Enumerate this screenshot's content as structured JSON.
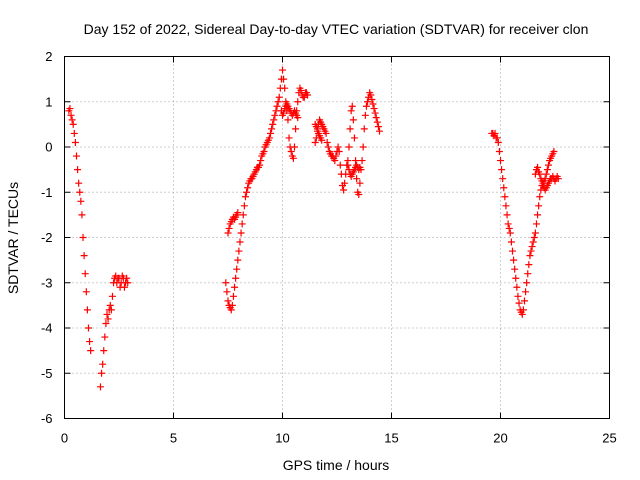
{
  "chart_data": {
    "type": "scatter",
    "title": "Day 152 of 2022, Sidereal Day-to-day VTEC variation (SDTVAR) for receiver clon",
    "xlabel": "GPS time / hours",
    "ylabel": "SDTVAR / TECUs",
    "xlim": [
      0,
      25
    ],
    "ylim": [
      -6,
      2
    ],
    "xticks": [
      0,
      5,
      10,
      15,
      20,
      25
    ],
    "yticks": [
      -6,
      -5,
      -4,
      -3,
      -2,
      -1,
      0,
      1,
      2
    ],
    "grid": true,
    "legend": "none",
    "marker": "+",
    "series_color": "#ff0000",
    "series": [
      {
        "name": "SDTVAR",
        "points": [
          [
            0.2,
            0.8
          ],
          [
            0.25,
            0.85
          ],
          [
            0.3,
            0.7
          ],
          [
            0.35,
            0.6
          ],
          [
            0.4,
            0.5
          ],
          [
            0.45,
            0.3
          ],
          [
            0.5,
            0.1
          ],
          [
            0.55,
            -0.2
          ],
          [
            0.6,
            -0.5
          ],
          [
            0.65,
            -0.8
          ],
          [
            0.7,
            -1.0
          ],
          [
            0.75,
            -1.2
          ],
          [
            0.8,
            -1.5
          ],
          [
            0.85,
            -2.0
          ],
          [
            0.9,
            -2.4
          ],
          [
            0.95,
            -2.8
          ],
          [
            1.0,
            -3.2
          ],
          [
            1.05,
            -3.6
          ],
          [
            1.1,
            -4.0
          ],
          [
            1.15,
            -4.3
          ],
          [
            1.2,
            -4.5
          ],
          [
            1.65,
            -5.3
          ],
          [
            1.7,
            -5.0
          ],
          [
            1.75,
            -4.8
          ],
          [
            1.8,
            -4.5
          ],
          [
            1.85,
            -4.2
          ],
          [
            1.9,
            -3.9
          ],
          [
            1.95,
            -3.7
          ],
          [
            2.0,
            -3.8
          ],
          [
            2.05,
            -3.6
          ],
          [
            2.1,
            -3.5
          ],
          [
            2.15,
            -3.6
          ],
          [
            2.2,
            -3.3
          ],
          [
            2.25,
            -3.0
          ],
          [
            2.3,
            -2.9
          ],
          [
            2.35,
            -2.85
          ],
          [
            2.4,
            -3.0
          ],
          [
            2.45,
            -2.9
          ],
          [
            2.5,
            -2.9
          ],
          [
            2.55,
            -3.1
          ],
          [
            2.6,
            -3.0
          ],
          [
            2.65,
            -2.85
          ],
          [
            2.7,
            -2.9
          ],
          [
            2.75,
            -3.1
          ],
          [
            2.8,
            -3.0
          ],
          [
            2.85,
            -2.9
          ],
          [
            2.9,
            -3.0
          ],
          [
            7.4,
            -3.0
          ],
          [
            7.45,
            -3.2
          ],
          [
            7.5,
            -3.4
          ],
          [
            7.55,
            -3.5
          ],
          [
            7.6,
            -3.55
          ],
          [
            7.65,
            -3.6
          ],
          [
            7.7,
            -3.5
          ],
          [
            7.75,
            -3.3
          ],
          [
            7.8,
            -3.1
          ],
          [
            7.85,
            -2.9
          ],
          [
            7.9,
            -2.7
          ],
          [
            7.95,
            -2.5
          ],
          [
            8.0,
            -2.3
          ],
          [
            8.05,
            -2.1
          ],
          [
            8.1,
            -1.9
          ],
          [
            8.15,
            -1.7
          ],
          [
            8.2,
            -1.5
          ],
          [
            8.25,
            -1.3
          ],
          [
            8.3,
            -1.1
          ],
          [
            8.35,
            -1.0
          ],
          [
            8.4,
            -0.9
          ],
          [
            8.45,
            -0.8
          ],
          [
            8.5,
            -0.75
          ],
          [
            8.55,
            -0.7
          ],
          [
            8.6,
            -0.7
          ],
          [
            8.65,
            -0.65
          ],
          [
            8.7,
            -0.6
          ],
          [
            8.75,
            -0.55
          ],
          [
            8.8,
            -0.5
          ],
          [
            8.85,
            -0.45
          ],
          [
            8.9,
            -0.45
          ],
          [
            8.95,
            -0.4
          ],
          [
            9.0,
            -0.3
          ],
          [
            9.05,
            -0.2
          ],
          [
            9.1,
            -0.15
          ],
          [
            9.15,
            -0.1
          ],
          [
            9.2,
            0.0
          ],
          [
            9.25,
            0.05
          ],
          [
            9.3,
            0.1
          ],
          [
            9.35,
            0.15
          ],
          [
            9.4,
            0.2
          ],
          [
            9.45,
            0.3
          ],
          [
            9.5,
            0.4
          ],
          [
            9.55,
            0.5
          ],
          [
            9.6,
            0.6
          ],
          [
            9.65,
            0.7
          ],
          [
            9.7,
            0.8
          ],
          [
            9.75,
            0.9
          ],
          [
            9.8,
            1.0
          ],
          [
            9.85,
            1.1
          ],
          [
            9.9,
            1.3
          ],
          [
            9.95,
            1.5
          ],
          [
            10.0,
            1.7
          ],
          [
            10.05,
            1.5
          ],
          [
            10.1,
            1.3
          ],
          [
            10.15,
            1.0
          ],
          [
            10.2,
            0.8
          ],
          [
            10.25,
            0.6
          ],
          [
            10.3,
            0.2
          ],
          [
            10.35,
            0.0
          ],
          [
            10.4,
            -0.1
          ],
          [
            10.45,
            -0.2
          ],
          [
            10.5,
            -0.25
          ],
          [
            10.55,
            0.0
          ],
          [
            10.6,
            0.4
          ],
          [
            10.65,
            0.8
          ],
          [
            10.7,
            1.0
          ],
          [
            10.75,
            1.2
          ],
          [
            10.8,
            1.3
          ],
          [
            10.85,
            1.25
          ],
          [
            10.9,
            1.15
          ],
          [
            10.95,
            1.1
          ],
          [
            11.0,
            1.1
          ],
          [
            11.05,
            1.2
          ],
          [
            11.1,
            1.2
          ],
          [
            11.15,
            1.15
          ],
          [
            7.5,
            -1.9
          ],
          [
            7.55,
            -1.8
          ],
          [
            7.6,
            -1.7
          ],
          [
            7.65,
            -1.65
          ],
          [
            7.7,
            -1.6
          ],
          [
            7.75,
            -1.55
          ],
          [
            7.8,
            -1.6
          ],
          [
            7.85,
            -1.55
          ],
          [
            7.9,
            -1.5
          ],
          [
            7.95,
            -1.45
          ],
          [
            9.95,
            0.8
          ],
          [
            10.0,
            0.7
          ],
          [
            10.05,
            0.75
          ],
          [
            10.1,
            0.85
          ],
          [
            10.15,
            0.9
          ],
          [
            10.2,
            0.95
          ],
          [
            10.25,
            0.9
          ],
          [
            10.3,
            0.85
          ],
          [
            10.35,
            0.8
          ],
          [
            10.4,
            0.75
          ],
          [
            10.45,
            0.7
          ],
          [
            10.5,
            0.75
          ],
          [
            10.55,
            0.8
          ],
          [
            10.6,
            0.75
          ],
          [
            10.65,
            0.7
          ],
          [
            10.7,
            0.65
          ],
          [
            11.5,
            0.1
          ],
          [
            11.55,
            0.2
          ],
          [
            11.6,
            0.35
          ],
          [
            11.65,
            0.5
          ],
          [
            11.7,
            0.6
          ],
          [
            11.75,
            0.55
          ],
          [
            11.8,
            0.5
          ],
          [
            11.85,
            0.45
          ],
          [
            11.9,
            0.4
          ],
          [
            11.95,
            0.35
          ],
          [
            12.0,
            0.3
          ],
          [
            12.05,
            0.1
          ],
          [
            12.1,
            0.0
          ],
          [
            12.15,
            -0.1
          ],
          [
            12.2,
            -0.15
          ],
          [
            12.25,
            -0.2
          ],
          [
            12.3,
            -0.2
          ],
          [
            12.35,
            -0.25
          ],
          [
            12.4,
            -0.3
          ],
          [
            12.45,
            -0.2
          ],
          [
            12.5,
            -0.1
          ],
          [
            12.55,
            0.0
          ],
          [
            12.6,
            -0.1
          ],
          [
            12.65,
            -0.4
          ],
          [
            12.7,
            -0.6
          ],
          [
            12.75,
            -0.85
          ],
          [
            12.8,
            -0.95
          ],
          [
            12.85,
            -0.8
          ],
          [
            12.9,
            -0.6
          ],
          [
            12.95,
            -0.4
          ],
          [
            13.0,
            -0.3
          ],
          [
            13.05,
            0.0
          ],
          [
            13.1,
            0.4
          ],
          [
            13.15,
            0.8
          ],
          [
            13.2,
            0.9
          ],
          [
            13.25,
            0.6
          ],
          [
            13.3,
            0.2
          ],
          [
            13.35,
            -0.3
          ],
          [
            13.4,
            -0.7
          ],
          [
            13.45,
            -1.0
          ],
          [
            13.5,
            -1.05
          ],
          [
            13.55,
            -0.8
          ],
          [
            13.6,
            -0.5
          ],
          [
            13.65,
            -0.3
          ],
          [
            13.7,
            0.0
          ],
          [
            13.75,
            0.4
          ],
          [
            13.8,
            0.7
          ],
          [
            13.85,
            0.9
          ],
          [
            13.9,
            1.0
          ],
          [
            13.95,
            1.1
          ],
          [
            14.0,
            1.2
          ],
          [
            14.05,
            1.15
          ],
          [
            14.1,
            1.05
          ],
          [
            14.15,
            0.95
          ],
          [
            14.2,
            0.85
          ],
          [
            14.25,
            0.75
          ],
          [
            14.3,
            0.65
          ],
          [
            14.35,
            0.55
          ],
          [
            14.4,
            0.45
          ],
          [
            14.45,
            0.35
          ],
          [
            11.5,
            0.5
          ],
          [
            11.55,
            0.45
          ],
          [
            11.6,
            0.4
          ],
          [
            11.65,
            0.3
          ],
          [
            11.7,
            0.25
          ],
          [
            11.75,
            0.2
          ],
          [
            11.8,
            0.15
          ],
          [
            13.0,
            -0.4
          ],
          [
            13.05,
            -0.5
          ],
          [
            13.1,
            -0.6
          ],
          [
            13.15,
            -0.65
          ],
          [
            13.2,
            -0.6
          ],
          [
            13.25,
            -0.55
          ],
          [
            13.3,
            -0.5
          ],
          [
            13.35,
            -0.45
          ],
          [
            13.4,
            -0.4
          ],
          [
            13.45,
            -0.45
          ],
          [
            13.5,
            -0.5
          ],
          [
            13.55,
            -0.45
          ],
          [
            19.6,
            0.3
          ],
          [
            19.65,
            0.3
          ],
          [
            19.7,
            0.25
          ],
          [
            19.75,
            0.3
          ],
          [
            19.8,
            0.2
          ],
          [
            19.85,
            0.2
          ],
          [
            19.9,
            0.1
          ],
          [
            19.95,
            -0.1
          ],
          [
            20.0,
            -0.3
          ],
          [
            20.05,
            -0.5
          ],
          [
            20.1,
            -0.7
          ],
          [
            20.15,
            -0.9
          ],
          [
            20.2,
            -1.1
          ],
          [
            20.25,
            -1.3
          ],
          [
            20.3,
            -1.5
          ],
          [
            20.35,
            -1.7
          ],
          [
            20.4,
            -1.8
          ],
          [
            20.45,
            -1.9
          ],
          [
            20.5,
            -2.1
          ],
          [
            20.55,
            -2.3
          ],
          [
            20.6,
            -2.5
          ],
          [
            20.65,
            -2.7
          ],
          [
            20.7,
            -2.9
          ],
          [
            20.75,
            -3.1
          ],
          [
            20.8,
            -3.3
          ],
          [
            20.85,
            -3.45
          ],
          [
            20.9,
            -3.6
          ],
          [
            20.95,
            -3.65
          ],
          [
            21.0,
            -3.7
          ],
          [
            21.05,
            -3.6
          ],
          [
            21.1,
            -3.4
          ],
          [
            21.15,
            -3.2
          ],
          [
            21.2,
            -3.0
          ],
          [
            21.25,
            -2.8
          ],
          [
            21.3,
            -2.6
          ],
          [
            21.35,
            -2.4
          ],
          [
            21.4,
            -2.3
          ],
          [
            21.45,
            -2.2
          ],
          [
            21.5,
            -2.1
          ],
          [
            21.55,
            -2.0
          ],
          [
            21.6,
            -1.9
          ],
          [
            21.65,
            -1.7
          ],
          [
            21.7,
            -1.5
          ],
          [
            21.75,
            -1.3
          ],
          [
            21.8,
            -1.1
          ],
          [
            21.85,
            -0.95
          ],
          [
            21.9,
            -0.85
          ],
          [
            21.95,
            -0.8
          ],
          [
            22.0,
            -0.75
          ],
          [
            22.05,
            -0.7
          ],
          [
            22.1,
            -0.6
          ],
          [
            22.15,
            -0.5
          ],
          [
            22.2,
            -0.4
          ],
          [
            22.25,
            -0.3
          ],
          [
            22.3,
            -0.25
          ],
          [
            22.35,
            -0.2
          ],
          [
            22.4,
            -0.15
          ],
          [
            22.45,
            -0.1
          ],
          [
            21.6,
            -0.6
          ],
          [
            21.65,
            -0.5
          ],
          [
            21.7,
            -0.45
          ],
          [
            21.75,
            -0.55
          ],
          [
            21.8,
            -0.6
          ],
          [
            21.85,
            -0.7
          ],
          [
            21.9,
            -0.75
          ],
          [
            21.95,
            -0.85
          ],
          [
            22.0,
            -0.9
          ],
          [
            22.05,
            -0.95
          ],
          [
            22.1,
            -0.9
          ],
          [
            22.15,
            -0.85
          ],
          [
            22.2,
            -0.8
          ],
          [
            22.25,
            -0.75
          ],
          [
            22.3,
            -0.7
          ],
          [
            22.35,
            -0.7
          ],
          [
            22.4,
            -0.65
          ],
          [
            22.45,
            -0.7
          ],
          [
            22.5,
            -0.75
          ],
          [
            22.55,
            -0.7
          ],
          [
            22.6,
            -0.65
          ],
          [
            22.65,
            -0.7
          ]
        ]
      }
    ]
  }
}
